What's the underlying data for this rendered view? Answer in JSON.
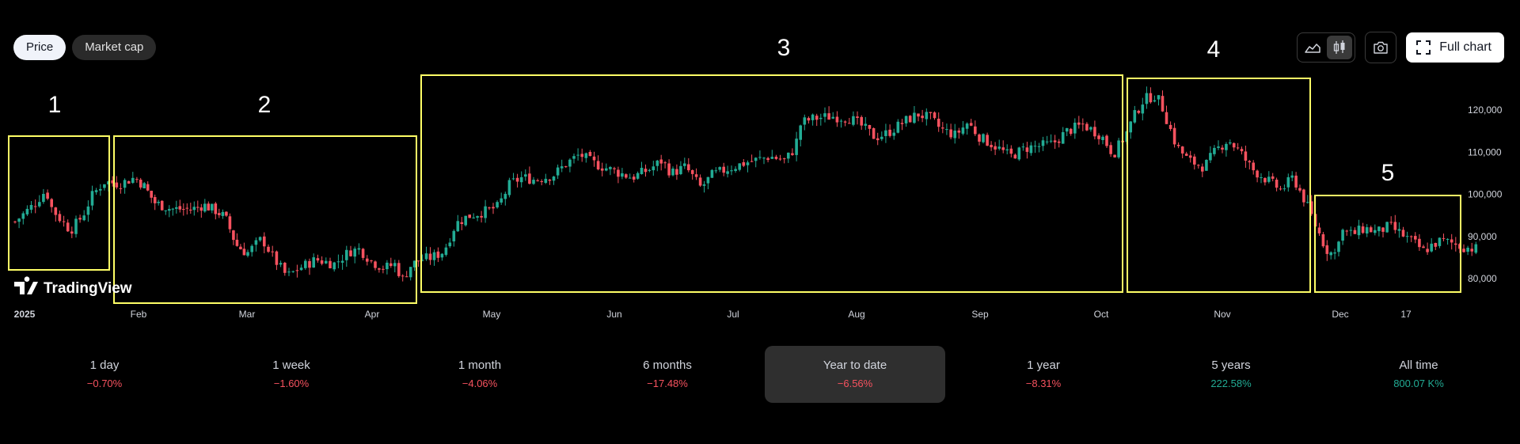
{
  "tabs": [
    {
      "label": "Price",
      "active": true
    },
    {
      "label": "Market cap",
      "active": false
    }
  ],
  "toolbar": {
    "area_icon": "area-chart-icon",
    "candles_icon": "candlestick-icon",
    "camera_icon": "camera-icon",
    "full_chart_icon": "fullscreen-icon",
    "full_chart_label": "Full chart"
  },
  "watermark": "TradingView",
  "periods": [
    {
      "label": "1 day",
      "value": "−0.70%",
      "trend": "down",
      "active": false
    },
    {
      "label": "1 week",
      "value": "−1.60%",
      "trend": "down",
      "active": false
    },
    {
      "label": "1 month",
      "value": "−4.06%",
      "trend": "down",
      "active": false
    },
    {
      "label": "6 months",
      "value": "−17.48%",
      "trend": "down",
      "active": false
    },
    {
      "label": "Year to date",
      "value": "−6.56%",
      "trend": "down",
      "active": true
    },
    {
      "label": "1 year",
      "value": "−8.31%",
      "trend": "down",
      "active": false
    },
    {
      "label": "5 years",
      "value": "222.58%",
      "trend": "up",
      "active": false
    },
    {
      "label": "All time",
      "value": "800.07 K%",
      "trend": "up",
      "active": false
    }
  ],
  "colors": {
    "up": "#22ab94",
    "down": "#f7525f",
    "highlight": "#ffff66",
    "background": "#000000"
  },
  "chart_data": {
    "type": "candlestick",
    "x_tick_labels": [
      "2025",
      "Feb",
      "Mar",
      "Apr",
      "May",
      "Jun",
      "Jul",
      "Aug",
      "Sep",
      "Oct",
      "Nov",
      "Dec",
      "17"
    ],
    "y_tick_labels": [
      "120,000",
      "110,000",
      "100,000",
      "90,000",
      "80,000"
    ],
    "y_ticks": [
      120000,
      110000,
      100000,
      90000,
      80000
    ],
    "ylim": [
      76000,
      126000
    ],
    "grid": false,
    "regions": [
      {
        "label": "1",
        "from_month": 0.0,
        "to_month": 0.95
      },
      {
        "label": "2",
        "from_month": 0.97,
        "to_month": 3.55
      },
      {
        "label": "3",
        "from_month": 3.6,
        "to_month": 9.25
      },
      {
        "label": "4",
        "from_month": 9.3,
        "to_month": 10.85
      },
      {
        "label": "5",
        "from_month": 10.9,
        "to_month": 11.75
      }
    ],
    "anchors": [
      [
        0.0,
        93500
      ],
      [
        0.15,
        97500
      ],
      [
        0.25,
        101000
      ],
      [
        0.3,
        96500
      ],
      [
        0.4,
        93000
      ],
      [
        0.45,
        91500
      ],
      [
        0.55,
        95000
      ],
      [
        0.62,
        99500
      ],
      [
        0.72,
        103000
      ],
      [
        0.85,
        102500
      ],
      [
        0.97,
        104000
      ],
      [
        1.05,
        102000
      ],
      [
        1.15,
        98000
      ],
      [
        1.3,
        96500
      ],
      [
        1.5,
        96500
      ],
      [
        1.6,
        97500
      ],
      [
        1.72,
        96000
      ],
      [
        1.8,
        94500
      ],
      [
        1.9,
        88000
      ],
      [
        2.0,
        86000
      ],
      [
        2.12,
        89500
      ],
      [
        2.22,
        84500
      ],
      [
        2.32,
        80500
      ],
      [
        2.42,
        82500
      ],
      [
        2.55,
        84500
      ],
      [
        2.7,
        83500
      ],
      [
        2.82,
        86500
      ],
      [
        2.9,
        87000
      ],
      [
        3.0,
        84000
      ],
      [
        3.1,
        82500
      ],
      [
        3.2,
        83500
      ],
      [
        3.25,
        79500
      ],
      [
        3.32,
        83000
      ],
      [
        3.4,
        84500
      ],
      [
        3.5,
        85000
      ],
      [
        3.6,
        86500
      ],
      [
        3.7,
        93000
      ],
      [
        3.8,
        94800
      ],
      [
        3.95,
        96000
      ],
      [
        4.05,
        97000
      ],
      [
        4.15,
        102500
      ],
      [
        4.25,
        104000
      ],
      [
        4.35,
        103500
      ],
      [
        4.5,
        104500
      ],
      [
        4.62,
        107500
      ],
      [
        4.72,
        109500
      ],
      [
        4.82,
        107500
      ],
      [
        5.0,
        105500
      ],
      [
        5.15,
        104000
      ],
      [
        5.3,
        106000
      ],
      [
        5.4,
        108000
      ],
      [
        5.48,
        105000
      ],
      [
        5.6,
        106500
      ],
      [
        5.73,
        101500
      ],
      [
        5.82,
        104500
      ],
      [
        5.95,
        106000
      ],
      [
        6.1,
        107500
      ],
      [
        6.3,
        109000
      ],
      [
        6.42,
        108000
      ],
      [
        6.5,
        111000
      ],
      [
        6.55,
        117000
      ],
      [
        6.65,
        118000
      ],
      [
        6.8,
        118500
      ],
      [
        6.95,
        118000
      ],
      [
        7.05,
        116000
      ],
      [
        7.15,
        113500
      ],
      [
        7.25,
        114500
      ],
      [
        7.4,
        117500
      ],
      [
        7.5,
        119000
      ],
      [
        7.6,
        118000
      ],
      [
        7.68,
        115500
      ],
      [
        7.8,
        114000
      ],
      [
        7.9,
        117000
      ],
      [
        8.0,
        113500
      ],
      [
        8.12,
        111500
      ],
      [
        8.25,
        109000
      ],
      [
        8.38,
        111000
      ],
      [
        8.5,
        111500
      ],
      [
        8.6,
        112000
      ],
      [
        8.72,
        115000
      ],
      [
        8.85,
        116500
      ],
      [
        9.0,
        114000
      ],
      [
        9.1,
        109500
      ],
      [
        9.2,
        114000
      ],
      [
        9.28,
        119000
      ],
      [
        9.35,
        122500
      ],
      [
        9.45,
        123500
      ],
      [
        9.5,
        121000
      ],
      [
        9.62,
        111500
      ],
      [
        9.72,
        108000
      ],
      [
        9.85,
        106500
      ],
      [
        9.95,
        110500
      ],
      [
        10.05,
        113000
      ],
      [
        10.15,
        110000
      ],
      [
        10.25,
        106000
      ],
      [
        10.4,
        103000
      ],
      [
        10.5,
        101000
      ],
      [
        10.6,
        104000
      ],
      [
        10.7,
        98500
      ],
      [
        10.8,
        92000
      ],
      [
        10.88,
        87000
      ],
      [
        10.95,
        85500
      ],
      [
        11.0,
        91500
      ],
      [
        11.1,
        90500
      ],
      [
        11.2,
        92000
      ],
      [
        11.3,
        91000
      ],
      [
        11.4,
        92500
      ],
      [
        11.5,
        90500
      ],
      [
        11.6,
        88500
      ],
      [
        11.68,
        86500
      ],
      [
        11.75,
        88000
      ],
      [
        11.82,
        89000
      ],
      [
        11.9,
        88500
      ],
      [
        12.0,
        87500
      ],
      [
        12.12,
        87000
      ]
    ]
  }
}
